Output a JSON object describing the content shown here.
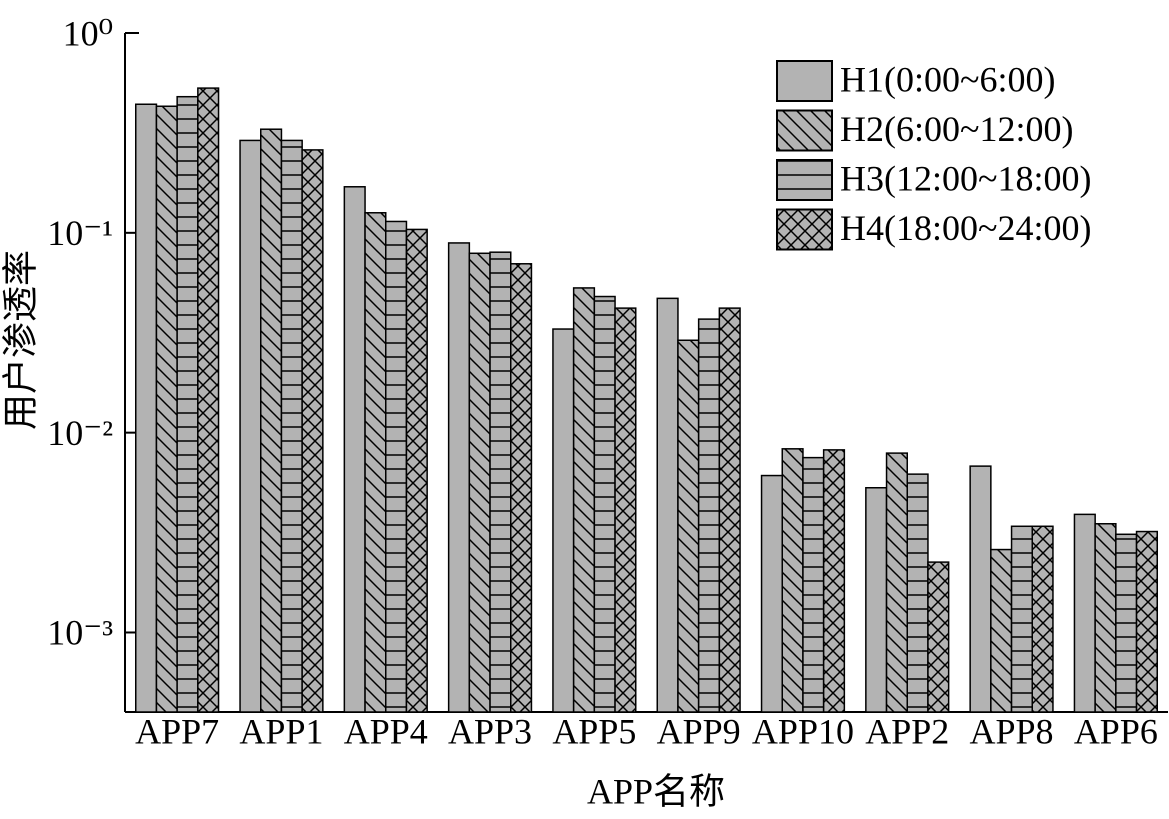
{
  "chart_data": {
    "type": "bar",
    "x_label": "APP名称",
    "y_label": "用户渗透率",
    "yscale": "log",
    "categories": [
      "APP7",
      "APP1",
      "APP4",
      "APP3",
      "APP5",
      "APP9",
      "APP10",
      "APP2",
      "APP8",
      "APP6"
    ],
    "series": [
      {
        "name": "H1(0:00~6:00)",
        "color": "#b3b3b3",
        "pattern": "solid",
        "values": [
          0.44,
          0.29,
          0.17,
          0.089,
          0.033,
          0.047,
          0.0061,
          0.0053,
          0.0068,
          0.0039
        ]
      },
      {
        "name": "H2(6:00~12:00)",
        "color": "#b3b3b3",
        "pattern": "diagonal",
        "values": [
          0.43,
          0.33,
          0.126,
          0.079,
          0.053,
          0.029,
          0.0083,
          0.0079,
          0.0026,
          0.0035
        ]
      },
      {
        "name": "H3(12:00~18:00)",
        "color": "#b3b3b3",
        "pattern": "horizontal",
        "values": [
          0.48,
          0.29,
          0.114,
          0.08,
          0.048,
          0.037,
          0.0075,
          0.0062,
          0.0034,
          0.0031
        ]
      },
      {
        "name": "H4(18:00~24:00)",
        "color": "#b3b3b3",
        "pattern": "cross",
        "values": [
          0.53,
          0.26,
          0.104,
          0.07,
          0.042,
          0.042,
          0.0082,
          0.00225,
          0.0034,
          0.0032
        ]
      }
    ],
    "ylim": [
      0.0004,
      1
    ],
    "yticks": [
      {
        "value": 1,
        "label": "10⁰"
      },
      {
        "value": 0.1,
        "label": "10⁻¹"
      },
      {
        "value": 0.01,
        "label": "10⁻²"
      },
      {
        "value": 0.001,
        "label": "10⁻³"
      }
    ],
    "legend": "top-right"
  }
}
